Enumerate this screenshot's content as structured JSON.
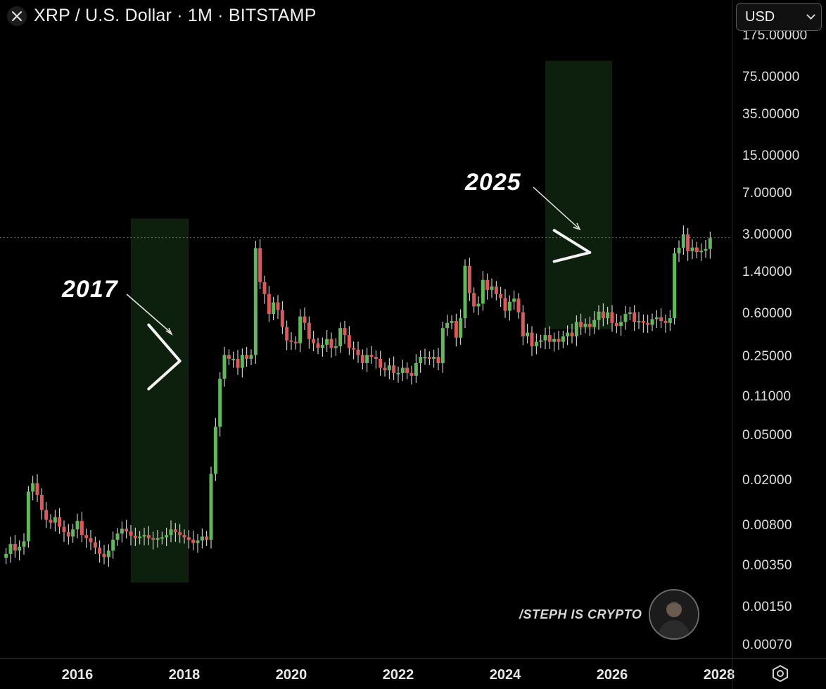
{
  "header": {
    "title": "XRP / U.S. Dollar · 1M · BITSTAMP"
  },
  "currency": {
    "value": "USD"
  },
  "colors": {
    "up": "#5fb85a",
    "down": "#e0575a",
    "highlight": "#0d1f0d",
    "background": "#000000"
  },
  "icons": {
    "close": "close-icon",
    "currency_chevron": "chevron-down-icon",
    "settings": "settings-hexagon-icon"
  },
  "annotations": [
    {
      "label": "2017"
    },
    {
      "label": "2025"
    }
  ],
  "watermark": {
    "text": "/STEPH IS CRYPTO"
  },
  "chart_data": {
    "type": "candlestick",
    "scale": "log",
    "y_ticks": [
      "175.00000",
      "75.00000",
      "35.00000",
      "15.00000",
      "7.00000",
      "3.00000",
      "1.40000",
      "0.60000",
      "0.25000",
      "0.11000",
      "0.05000",
      "0.02000",
      "0.00800",
      "0.00350",
      "0.00150",
      "0.00070"
    ],
    "x_ticks": [
      "2016",
      "2018",
      "2020",
      "2022",
      "2024",
      "2026",
      "2028"
    ],
    "current_price_line": 2.85,
    "highlight_periods": [
      {
        "start": "2017-01",
        "end": "2018-02"
      },
      {
        "start": "2024-10",
        "end": "2026-01"
      }
    ],
    "patterns": [
      {
        "type": "bull pennant",
        "start": "2017-05",
        "end": "2017-12",
        "upper": [
          0.48,
          0.23
        ],
        "lower": [
          0.13,
          0.23
        ]
      },
      {
        "type": "bull pennant",
        "start": "2024-12",
        "end": "2025-08",
        "upper": [
          3.3,
          2.1
        ],
        "lower": [
          1.75,
          2.1
        ]
      }
    ],
    "candles_close": [
      0.0045,
      0.0055,
      0.0048,
      0.0052,
      0.0058,
      0.016,
      0.019,
      0.015,
      0.011,
      0.009,
      0.0085,
      0.0095,
      0.0078,
      0.007,
      0.0064,
      0.0074,
      0.0088,
      0.0066,
      0.0062,
      0.0057,
      0.0051,
      0.0045,
      0.0042,
      0.0048,
      0.006,
      0.0068,
      0.0075,
      0.0071,
      0.0065,
      0.0062,
      0.0064,
      0.0066,
      0.0062,
      0.006,
      0.0062,
      0.0063,
      0.0066,
      0.0074,
      0.007,
      0.0066,
      0.0063,
      0.006,
      0.0056,
      0.0059,
      0.0064,
      0.006,
      0.023,
      0.06,
      0.16,
      0.26,
      0.24,
      0.24,
      0.2,
      0.26,
      0.24,
      0.26,
      2.3,
      1.15,
      0.9,
      0.6,
      0.76,
      0.65,
      0.46,
      0.35,
      0.34,
      0.33,
      0.57,
      0.5,
      0.36,
      0.33,
      0.3,
      0.32,
      0.36,
      0.3,
      0.31,
      0.45,
      0.39,
      0.3,
      0.29,
      0.26,
      0.22,
      0.26,
      0.25,
      0.24,
      0.2,
      0.19,
      0.21,
      0.18,
      0.18,
      0.2,
      0.18,
      0.17,
      0.22,
      0.25,
      0.25,
      0.24,
      0.25,
      0.22,
      0.45,
      0.5,
      0.52,
      0.37,
      0.55,
      1.6,
      0.92,
      0.7,
      0.74,
      1.2,
      0.98,
      1.05,
      0.9,
      0.83,
      0.64,
      0.77,
      0.82,
      0.62,
      0.38,
      0.41,
      0.31,
      0.34,
      0.35,
      0.39,
      0.34,
      0.36,
      0.34,
      0.38,
      0.41,
      0.38,
      0.51,
      0.46,
      0.49,
      0.46,
      0.53,
      0.63,
      0.55,
      0.62,
      0.5,
      0.47,
      0.51,
      0.6,
      0.62,
      0.51,
      0.52,
      0.5,
      0.48,
      0.54,
      0.56,
      0.52,
      0.5,
      0.55,
      2.07,
      2.32,
      3.04,
      2.16,
      2.33,
      2.12,
      2.18,
      2.26,
      2.82
    ]
  }
}
